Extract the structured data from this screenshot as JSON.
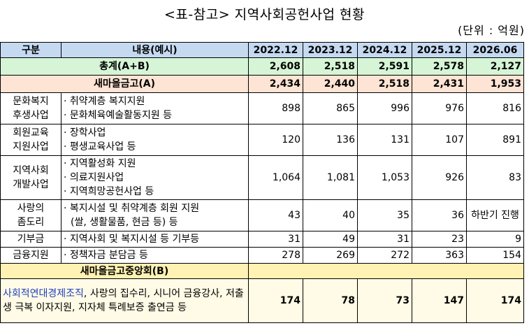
{
  "header": {
    "title": "<표-참고> 지역사회공헌사업 현황",
    "unit": "(단위 : 억원)"
  },
  "table": {
    "columns": [
      "구분",
      "내용(예시)",
      "2022.12",
      "2023.12",
      "2024.12",
      "2025.12",
      "2026.06"
    ],
    "total": {
      "label": "총계(A+B)",
      "values": [
        "2,608",
        "2,518",
        "2,591",
        "2,578",
        "2,127"
      ]
    },
    "subtotal_a": {
      "label": "새마을금고(A)",
      "values": [
        "2,434",
        "2,440",
        "2,518",
        "2,431",
        "1,953"
      ]
    },
    "rows": [
      {
        "category": [
          "문화복지",
          "후생사업"
        ],
        "items": [
          "· 취약계층 복지지원",
          "· 문화체육예술활동지원 등"
        ],
        "values": [
          "898",
          "865",
          "996",
          "976",
          "816"
        ]
      },
      {
        "category": [
          "회원교육",
          "지원사업"
        ],
        "items": [
          "· 장학사업",
          "· 평생교육사업 등"
        ],
        "values": [
          "120",
          "136",
          "131",
          "107",
          "891"
        ]
      },
      {
        "category": [
          "지역사회",
          "개발사업"
        ],
        "items": [
          "· 지역활성화 지원",
          "· 의료지원사업",
          "· 지역희망공헌사업 등"
        ],
        "values": [
          "1,064",
          "1,081",
          "1,053",
          "926",
          "83"
        ]
      },
      {
        "category": [
          "사랑의",
          "좀도리"
        ],
        "items": [
          "· 복지시설 및 취약계층 회원 지원",
          "(쌀, 생활물품, 현금 등) 등"
        ],
        "values": [
          "43",
          "40",
          "35",
          "36",
          "하반기 진행"
        ]
      },
      {
        "category": [
          "기부금"
        ],
        "items": [
          "· 지역사회 및 복지시설 등 기부등"
        ],
        "values": [
          "31",
          "49",
          "31",
          "23",
          "9"
        ]
      },
      {
        "category": [
          "금융지원"
        ],
        "items": [
          "· 정책자금 분담금 등"
        ],
        "values": [
          "278",
          "269",
          "272",
          "363",
          "154"
        ]
      }
    ],
    "subtotal_b": {
      "label": "새마을금고중앙회(B)",
      "description": [
        "사회적연대경제조직",
        ", 사랑의 집수리, 시니어 금융강사, 저출생 극복 이자지원, 지자체 특례보증 출연금 등"
      ],
      "values": [
        "174",
        "78",
        "73",
        "147",
        "174"
      ]
    }
  }
}
